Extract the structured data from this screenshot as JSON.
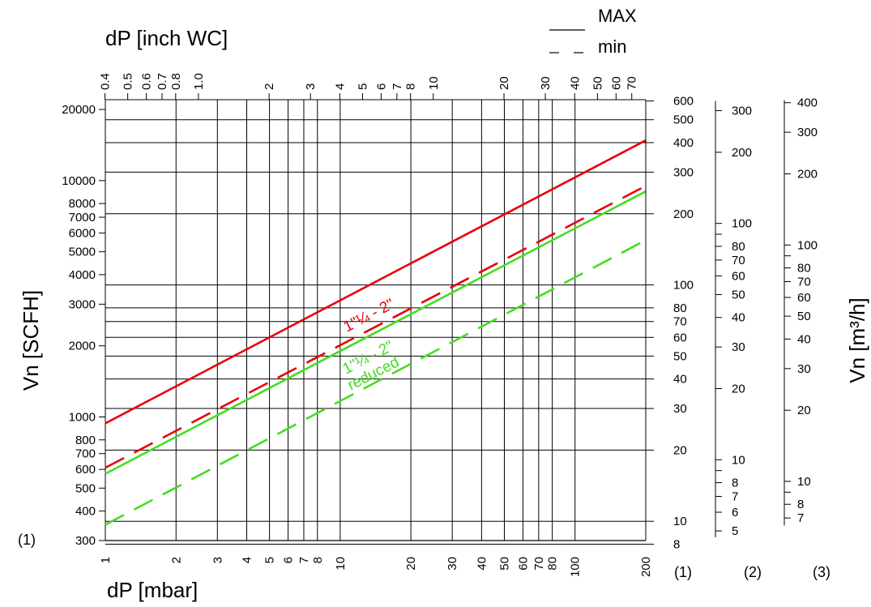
{
  "chart_data": {
    "type": "line",
    "scale": "log-log",
    "title_top_axis": "dP [inch WC]",
    "xlabel": "dP [mbar]",
    "ylabel_left": "Vn [SCFH]",
    "ylabel_right": "Vn [m³/h]",
    "xlim": [
      1,
      200
    ],
    "x_ticks": [
      "1",
      "2",
      "3",
      "4",
      "5",
      "6",
      "7",
      "8",
      "10",
      "20",
      "30",
      "40",
      "50",
      "60",
      "70",
      "80",
      "100",
      "200"
    ],
    "top_axis_ticks": [
      "0.4",
      "0.5",
      "0.6",
      "0.7",
      "0.8",
      "1.0",
      "2",
      "3",
      "4",
      "5",
      "6",
      "7",
      "8",
      "10",
      "20",
      "30",
      "40",
      "50",
      "60",
      "70"
    ],
    "ylim_scfh": [
      300,
      22000
    ],
    "y_left_ticks": [
      "300",
      "400",
      "500",
      "600",
      "700",
      "800",
      "1000",
      "2000",
      "3000",
      "4000",
      "5000",
      "6000",
      "7000",
      "8000",
      "10000",
      "20000"
    ],
    "scale_markers": [
      "(1)",
      "(2)",
      "(3)"
    ],
    "scale_1_ticks": [
      "8",
      "10",
      "20",
      "30",
      "40",
      "50",
      "60",
      "70",
      "80",
      "100",
      "200",
      "300",
      "400",
      "500",
      "600"
    ],
    "scale_2_ticks": [
      "5",
      "6",
      "7",
      "8",
      "10",
      "20",
      "30",
      "40",
      "50",
      "60",
      "70",
      "80",
      "100",
      "200",
      "300"
    ],
    "scale_3_ticks": [
      "7",
      "8",
      "10",
      "20",
      "30",
      "40",
      "50",
      "60",
      "70",
      "80",
      "100",
      "200",
      "300",
      "400"
    ],
    "legend": [
      {
        "label": "MAX",
        "style": "solid"
      },
      {
        "label": "min",
        "style": "dashed"
      }
    ],
    "annotations": [
      "1\"¼ - 2\"",
      "1\"¼ - 2\"",
      "reduced"
    ],
    "colors": {
      "red": "#e8000b",
      "green": "#44dd22"
    },
    "series": [
      {
        "color": "red",
        "style": "solid",
        "x": [
          1,
          200
        ],
        "y": [
          940,
          14800
        ]
      },
      {
        "color": "red",
        "style": "dashed",
        "x": [
          1,
          200
        ],
        "y": [
          610,
          9500
        ]
      },
      {
        "color": "green",
        "style": "solid",
        "x": [
          1,
          200
        ],
        "y": [
          575,
          9000
        ]
      },
      {
        "color": "green",
        "style": "dashed",
        "x": [
          1,
          200
        ],
        "y": [
          350,
          5600
        ]
      }
    ]
  }
}
